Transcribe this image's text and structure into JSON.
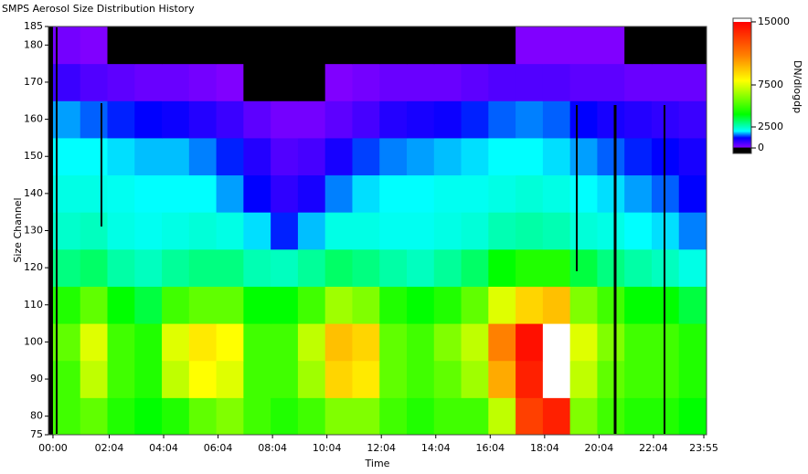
{
  "chart_data": {
    "type": "heatmap",
    "title": "SMPS Aerosol Size Distribution History",
    "xlabel": "Time",
    "ylabel": "Size Channel",
    "colorbar_label": "DN/dlogdp",
    "x": [
      30,
      90,
      150,
      210,
      270,
      330,
      390,
      450,
      510,
      570,
      630,
      690,
      750,
      810,
      870,
      930,
      990,
      1050,
      1110,
      1170,
      1230,
      1290,
      1350,
      1410
    ],
    "y": [
      80,
      90,
      100,
      110,
      120,
      130,
      140,
      150,
      160,
      170,
      180
    ],
    "z": [
      [
        5000,
        5500,
        4500,
        4000,
        4500,
        5500,
        6000,
        5000,
        4500,
        5000,
        6000,
        6000,
        5000,
        4500,
        5000,
        5000,
        7000,
        13000,
        14000,
        6000,
        5000,
        4500,
        4500,
        4000
      ],
      [
        5000,
        7000,
        5000,
        4500,
        7000,
        8000,
        7500,
        5000,
        5000,
        6500,
        9000,
        8500,
        5500,
        5000,
        5500,
        6500,
        10000,
        14000,
        16000,
        7000,
        5500,
        5000,
        5000,
        4500
      ],
      [
        5500,
        7500,
        5000,
        4500,
        7500,
        8500,
        8000,
        5000,
        5000,
        7000,
        9500,
        9000,
        5500,
        5000,
        6000,
        7000,
        11000,
        14500,
        16000,
        7500,
        6000,
        5000,
        5000,
        4500
      ],
      [
        4500,
        5500,
        4000,
        3500,
        5000,
        5500,
        5500,
        4000,
        4000,
        5000,
        6500,
        6000,
        4500,
        4000,
        4500,
        5500,
        7500,
        9000,
        9500,
        6000,
        5000,
        4000,
        4000,
        3500
      ],
      [
        3000,
        3200,
        2700,
        2500,
        2800,
        3000,
        3000,
        2600,
        2500,
        2800,
        3200,
        3000,
        2700,
        2500,
        2800,
        3200,
        4000,
        4500,
        4500,
        3500,
        3000,
        2700,
        2500,
        2200
      ],
      [
        2400,
        2500,
        2200,
        2100,
        2200,
        2300,
        2200,
        1900,
        1300,
        1800,
        2200,
        2200,
        2100,
        2100,
        2200,
        2300,
        2600,
        2700,
        2600,
        2300,
        2200,
        2000,
        1900,
        1600
      ],
      [
        2200,
        2200,
        2100,
        2000,
        2000,
        2000,
        1700,
        1200,
        800,
        1000,
        1600,
        1900,
        2000,
        2000,
        2100,
        2100,
        2200,
        2300,
        2200,
        2000,
        1900,
        1700,
        1500,
        1200
      ],
      [
        2000,
        2000,
        1900,
        1800,
        1800,
        1600,
        1300,
        900,
        500,
        600,
        1000,
        1400,
        1600,
        1700,
        1800,
        1900,
        2000,
        2000,
        1900,
        1700,
        1500,
        1300,
        1200,
        1000
      ],
      [
        1700,
        1500,
        1300,
        1200,
        1100,
        900,
        700,
        400,
        200,
        200,
        400,
        600,
        900,
        1000,
        1100,
        1300,
        1500,
        1600,
        1500,
        1200,
        1000,
        900,
        800,
        700
      ],
      [
        700,
        500,
        400,
        300,
        300,
        200,
        100,
        0,
        0,
        0,
        100,
        200,
        300,
        300,
        300,
        400,
        500,
        500,
        500,
        400,
        400,
        300,
        300,
        300
      ],
      [
        200,
        100,
        0,
        0,
        0,
        0,
        0,
        0,
        0,
        0,
        0,
        0,
        0,
        0,
        0,
        0,
        0,
        100,
        100,
        100,
        100,
        0,
        0,
        0
      ]
    ],
    "xlim": [
      -10,
      1441
    ],
    "xticks": [
      {
        "value": 0,
        "label": "00:00"
      },
      {
        "value": 124,
        "label": "02:04"
      },
      {
        "value": 244,
        "label": "04:04"
      },
      {
        "value": 364,
        "label": "06:04"
      },
      {
        "value": 484,
        "label": "08:04"
      },
      {
        "value": 604,
        "label": "10:04"
      },
      {
        "value": 724,
        "label": "12:04"
      },
      {
        "value": 844,
        "label": "14:04"
      },
      {
        "value": 964,
        "label": "16:04"
      },
      {
        "value": 1084,
        "label": "18:04"
      },
      {
        "value": 1204,
        "label": "20:04"
      },
      {
        "value": 1324,
        "label": "22:04"
      },
      {
        "value": 1435,
        "label": "23:55"
      }
    ],
    "ylim": [
      75,
      185
    ],
    "yticks": [
      75,
      80,
      90,
      100,
      110,
      120,
      130,
      140,
      150,
      160,
      170,
      180,
      185
    ],
    "clim": [
      -650,
      15430
    ],
    "cticks": [
      0,
      2500,
      7500,
      15000
    ],
    "colorscale": [
      [
        0,
        "#000000"
      ],
      [
        100,
        "#8000ff"
      ],
      [
        1200,
        "#0000ff"
      ],
      [
        2000,
        "#00ffff"
      ],
      [
        4000,
        "#00ff00"
      ],
      [
        8000,
        "#ffff00"
      ],
      [
        11000,
        "#ff8000"
      ],
      [
        15000,
        "#ff0000"
      ]
    ],
    "over_color": "#ffffff"
  }
}
